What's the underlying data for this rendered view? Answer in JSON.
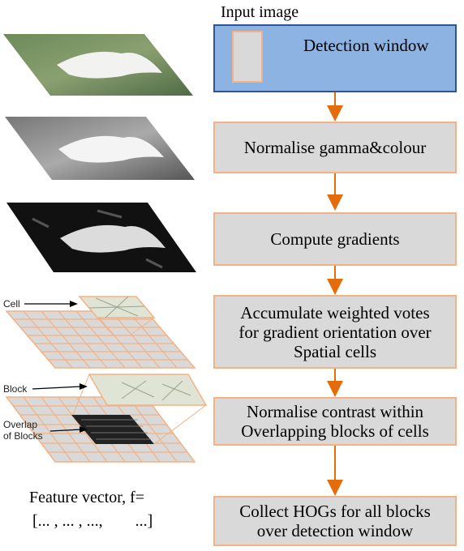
{
  "input_label": "Input image",
  "window_label": "Detection window",
  "steps": [
    {
      "id": "normalise-gamma",
      "text": "Normalise gamma&colour"
    },
    {
      "id": "compute-gradients",
      "text": "Compute gradients"
    },
    {
      "id": "accumulate-votes",
      "text": "Accumulate weighted votes\nfor gradient orientation over\nSpatial cells"
    },
    {
      "id": "normalise-contrast",
      "text": "Normalise contrast within\nOverlapping blocks of cells"
    },
    {
      "id": "collect-hogs",
      "text": "Collect HOGs for all blocks\nover detection window"
    }
  ],
  "illustration_labels": {
    "cell": "Cell",
    "block": "Block",
    "overlap": "Overlap\nof Blocks"
  },
  "feature_label": "Feature vector, f=",
  "feature_values": "[... , ... , ...,        ...]",
  "colors": {
    "input_fill": "#8db3e2",
    "input_border": "#2f5597",
    "step_fill": "#d9d9d9",
    "step_border": "#f4b183",
    "arrow": "#e46c0a"
  }
}
